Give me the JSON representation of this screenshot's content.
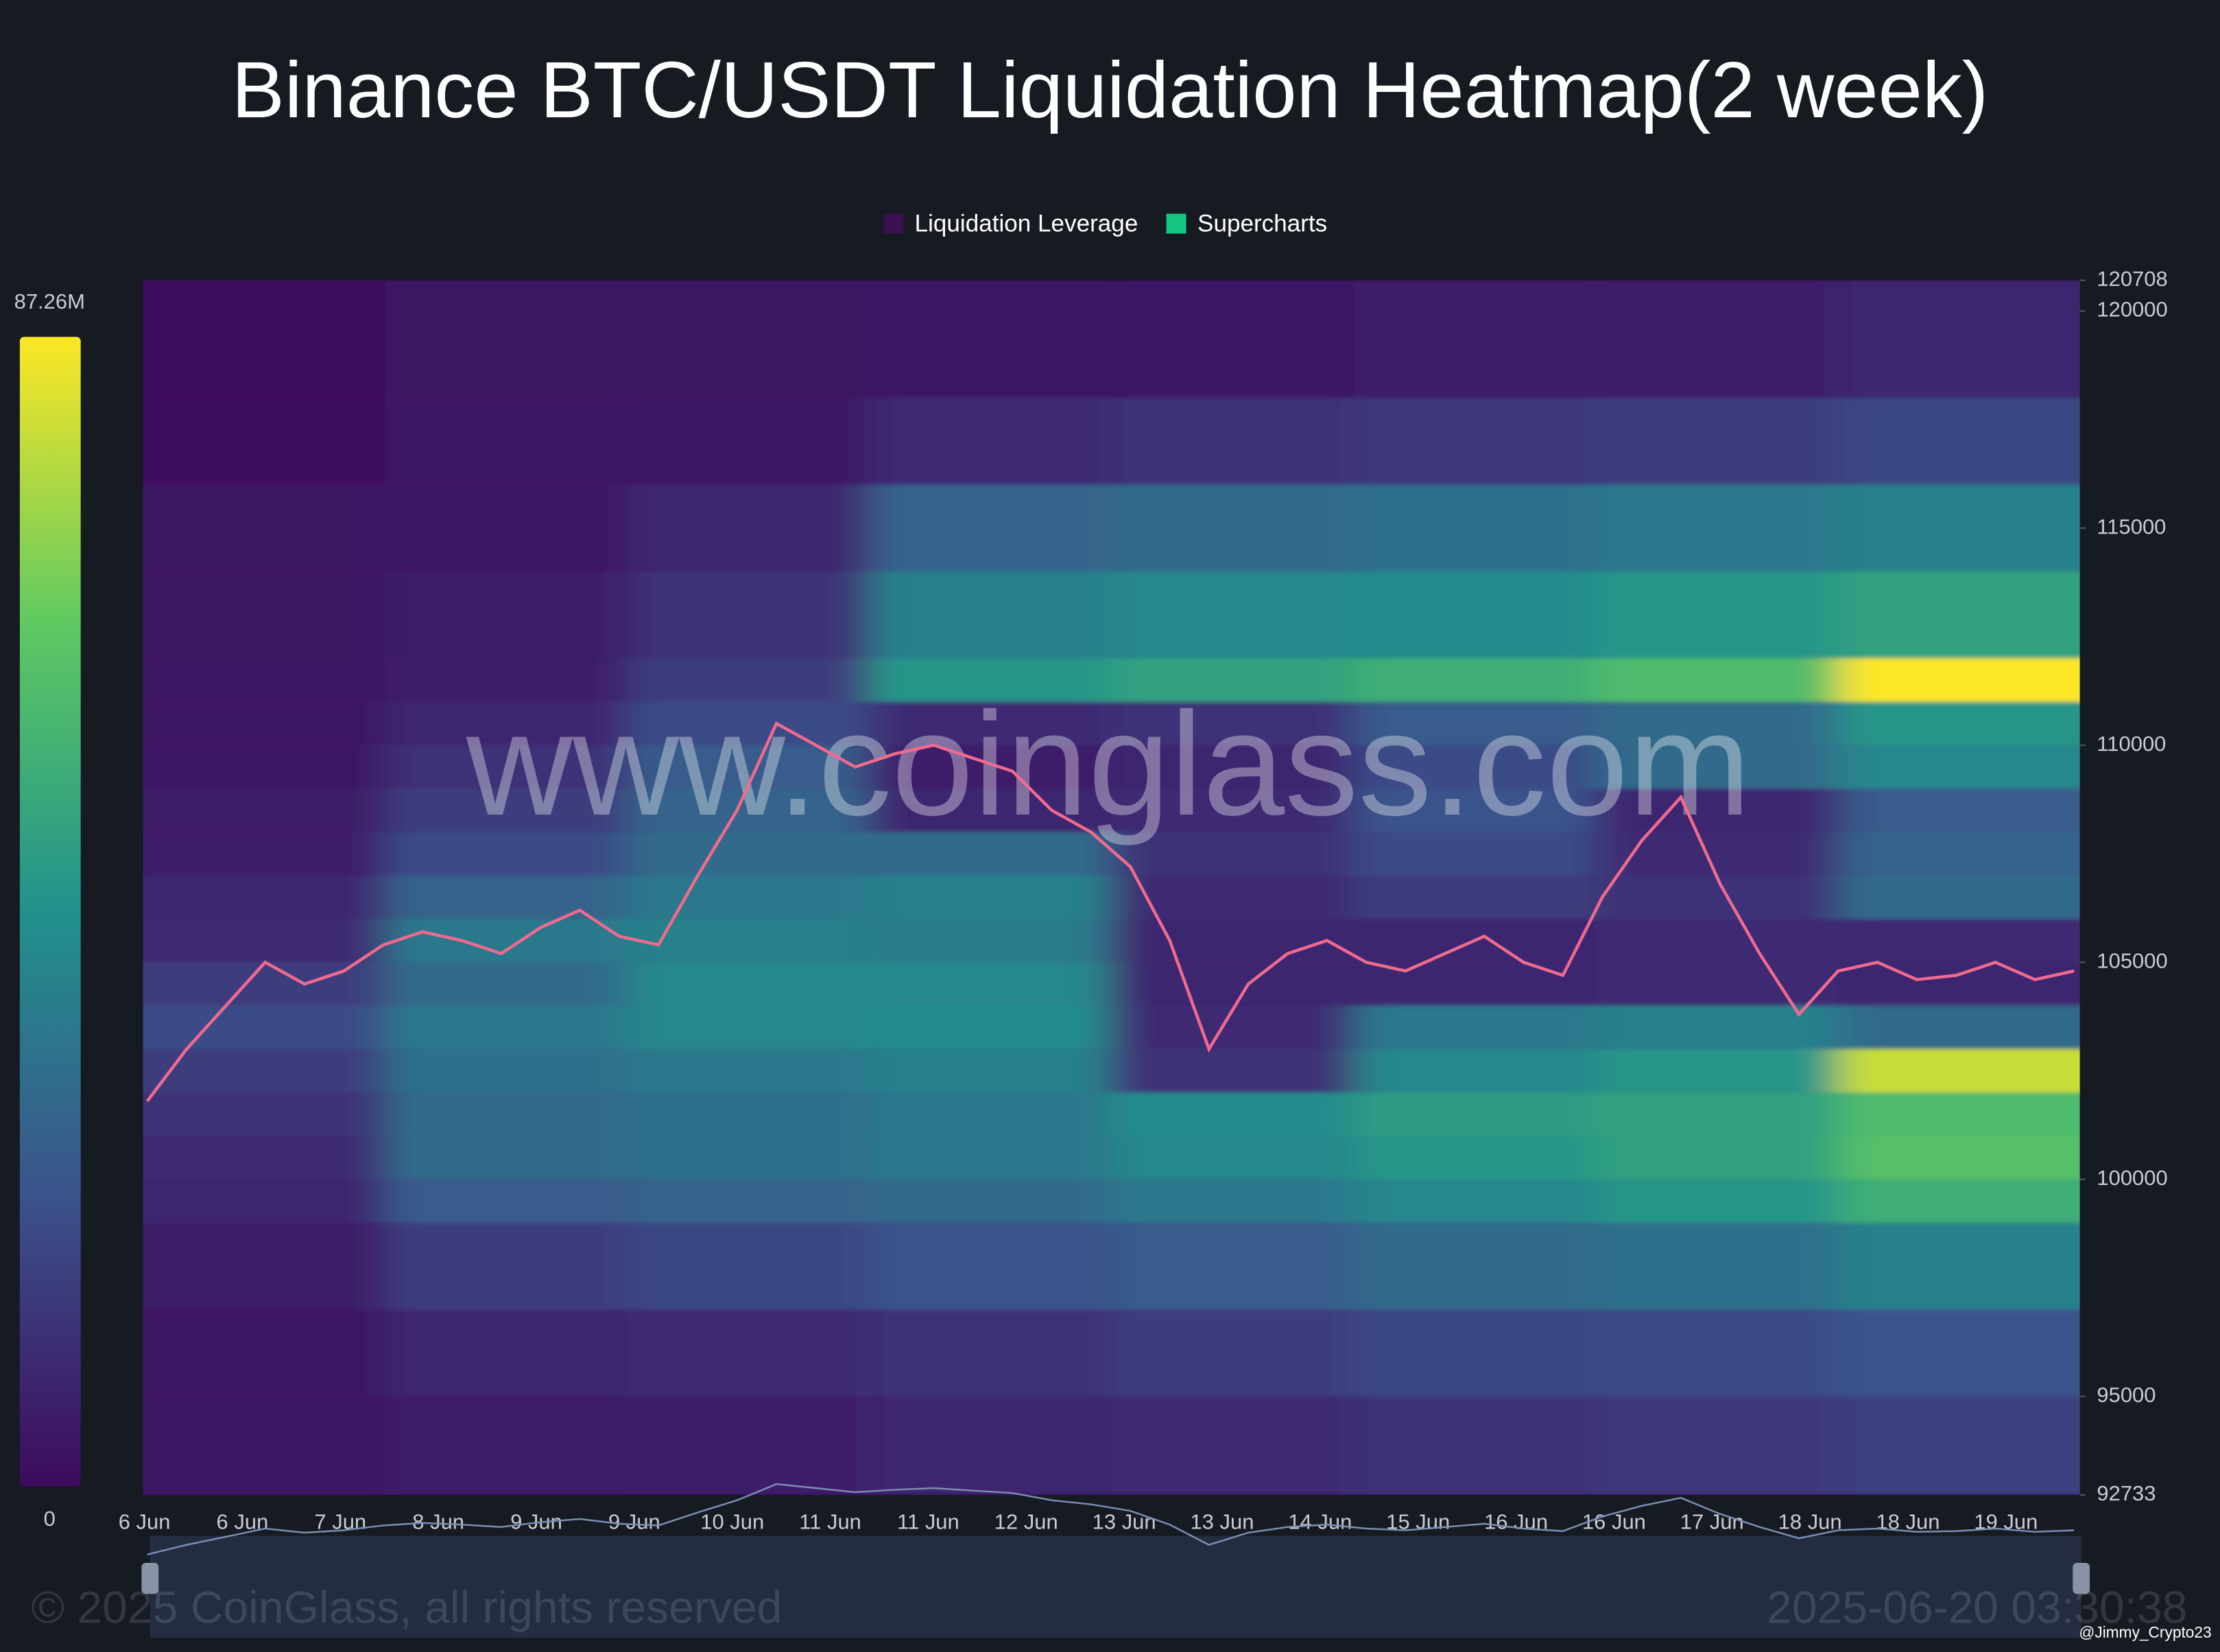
{
  "chart_data": {
    "type": "heatmap",
    "title": "Binance BTC/USDT Liquidation Heatmap(2 week)",
    "watermark": "www.coinglass.com",
    "copyright": "© 2025 CoinGlass, all rights reserved",
    "timestamp": "2025-06-20 03:30:38",
    "credit": "@Jimmy_Crypto23",
    "legend": [
      {
        "name": "Liquidation Leverage",
        "color": "#3b0f50"
      },
      {
        "name": "Supercharts",
        "color": "#16c784"
      }
    ],
    "colormap": [
      "#3d0b5e",
      "#3b528b",
      "#21918c",
      "#5ec962",
      "#fde725"
    ],
    "clim": [
      0,
      87.26
    ],
    "cticks": [
      0,
      {
        "value": 87.26,
        "label": "87.26M"
      }
    ],
    "ylim": [
      92733,
      120708
    ],
    "yticks": [
      92733,
      95000,
      100000,
      105000,
      110000,
      115000,
      120000,
      120708
    ],
    "xticks": [
      "6 Jun",
      "6 Jun",
      "7 Jun",
      "8 Jun",
      "9 Jun",
      "9 Jun",
      "10 Jun",
      "11 Jun",
      "11 Jun",
      "12 Jun",
      "13 Jun",
      "13 Jun",
      "14 Jun",
      "15 Jun",
      "16 Jun",
      "16 Jun",
      "17 Jun",
      "18 Jun",
      "18 Jun",
      "19 Jun"
    ],
    "price_bins": [
      92733,
      95000,
      97000,
      99000,
      100000,
      101000,
      102000,
      103000,
      104000,
      105000,
      106000,
      107000,
      108000,
      109000,
      110000,
      111000,
      112000,
      114000,
      116000,
      118000,
      120708
    ],
    "heat": [
      [
        3,
        3,
        5,
        8,
        10,
        12,
        15,
        20,
        15,
        10,
        8,
        6,
        5,
        4,
        3,
        3,
        2,
        2,
        1,
        1
      ],
      [
        5,
        8,
        15,
        25,
        30,
        30,
        32,
        35,
        30,
        35,
        28,
        20,
        15,
        12,
        8,
        6,
        5,
        4,
        3,
        2
      ],
      [
        6,
        10,
        18,
        28,
        32,
        32,
        35,
        40,
        40,
        38,
        35,
        30,
        28,
        25,
        20,
        15,
        12,
        8,
        4,
        2
      ],
      [
        8,
        12,
        22,
        30,
        35,
        35,
        38,
        42,
        40,
        36,
        38,
        30,
        8,
        6,
        10,
        45,
        38,
        28,
        10,
        3
      ],
      [
        10,
        15,
        25,
        35,
        40,
        42,
        12,
        10,
        8,
        8,
        10,
        12,
        10,
        8,
        12,
        50,
        40,
        30,
        12,
        4
      ],
      [
        12,
        18,
        30,
        40,
        45,
        48,
        40,
        35,
        8,
        8,
        15,
        20,
        22,
        20,
        25,
        55,
        42,
        32,
        14,
        5
      ],
      [
        14,
        20,
        32,
        45,
        50,
        50,
        45,
        38,
        10,
        10,
        12,
        10,
        8,
        30,
        30,
        60,
        45,
        35,
        15,
        6
      ],
      [
        16,
        22,
        38,
        55,
        62,
        60,
        80,
        30,
        8,
        10,
        30,
        28,
        25,
        40,
        45,
        87,
        50,
        38,
        18,
        8
      ]
    ],
    "price_color": "#f06a8e",
    "price": [
      101800,
      103000,
      104000,
      105000,
      104500,
      104800,
      105400,
      105700,
      105500,
      105200,
      105800,
      106200,
      105600,
      105400,
      107000,
      108500,
      110500,
      110000,
      109500,
      109800,
      110000,
      109700,
      109400,
      108500,
      108000,
      107200,
      105500,
      103000,
      104500,
      105200,
      105500,
      105000,
      104800,
      105200,
      105600,
      105000,
      104700,
      106500,
      107800,
      108800,
      106800,
      105200,
      103800,
      104800,
      105000,
      104600,
      104700,
      105000,
      104600,
      104800
    ]
  }
}
